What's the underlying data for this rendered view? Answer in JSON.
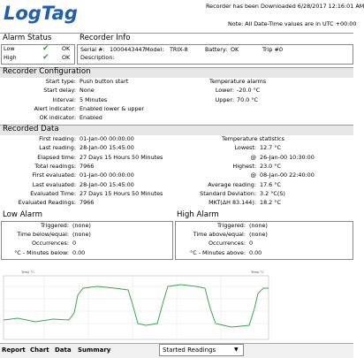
{
  "header": {
    "logo": "LogTag",
    "download_note": "Recorder has been Downloaded 6/28/2017 12:16:01 AM",
    "utc_note": "Note: All Date-Time values are in UTC +00:00"
  },
  "alarm_status": {
    "title": "Alarm Status",
    "rows": [
      {
        "label": "Low",
        "status": "OK"
      },
      {
        "label": "High",
        "status": "OK"
      }
    ]
  },
  "recorder_info": {
    "title": "Recorder Info",
    "fields": [
      [
        "Serial #:",
        "1000443447"
      ],
      [
        "Model:",
        "TRIX-8"
      ],
      [
        "Battery:",
        "OK"
      ],
      [
        "Trip #:",
        "0"
      ]
    ],
    "description_label": "Description:"
  },
  "configuration": {
    "title": "Recorder Configuration",
    "rows": [
      [
        "Start type:",
        "Push button start"
      ],
      [
        "Start delay:",
        "None"
      ],
      [
        "Interval:",
        "5 Minutes"
      ],
      [
        "Alert indicator:",
        "Enabled lower & upper"
      ],
      [
        "OK indicator:",
        "Enabled"
      ]
    ],
    "alarms_title": "Temperature alarms",
    "alarms": [
      [
        "Lower:",
        "-20.0 °C"
      ],
      [
        "Upper:",
        "70.0 °C"
      ]
    ]
  },
  "recorded_data": {
    "title": "Recorded Data",
    "rows": [
      [
        "First reading:",
        "01-Jan-00 00:00:00"
      ],
      [
        "Last reading:",
        "28-Jan-00 15:45:00"
      ],
      [
        "Elapsed time:",
        "27 Days 15 Hours 50 Minutes"
      ],
      [
        "Total readings:",
        "7966"
      ],
      [
        "First evaluated:",
        "01-Jan-00 00:00:00"
      ],
      [
        "Last evaluated:",
        "28-Jan-00 15:45:00"
      ],
      [
        "Evaluated Time:",
        "27 Days 15 Hours 50 Minutes"
      ],
      [
        "Evaluated Readings:",
        "7966"
      ]
    ],
    "stats_title": "Temperature statistics",
    "stats": [
      [
        "Lowest:",
        "12.7 °C"
      ],
      [
        "@",
        "26-Jan-00 10:30:00"
      ],
      [
        "Highest:",
        "23.0 °C"
      ],
      [
        "@",
        "08-Jan-00 22:40:00"
      ],
      [
        "Average reading:",
        "17.6 °C"
      ],
      [
        "Standard Deviation:",
        "3.2 °C(S)"
      ],
      [
        "MKT(ΔH 83.144):",
        "18.2 °C"
      ]
    ]
  },
  "low_alarm": {
    "title": "Low Alarm",
    "rows": [
      [
        "Triggered:",
        "(none)"
      ],
      [
        "Time below/equal:",
        "(none)"
      ],
      [
        "Occurrences:",
        "0"
      ],
      [
        "°C - Minutes below:",
        "0.00"
      ]
    ]
  },
  "high_alarm": {
    "title": "High Alarm",
    "rows": [
      [
        "Triggered:",
        "(none)"
      ],
      [
        "Time above/equal:",
        "(none)"
      ],
      [
        "Occurrences:",
        "0"
      ],
      [
        "°C - Minutes above:",
        "0.00"
      ]
    ]
  },
  "chart": {
    "y_label_left": "Temp °C",
    "y_label_right": "Temp °C"
  },
  "tabs": [
    "Report",
    "Chart",
    "Data",
    "Summary"
  ],
  "view_select": "Started Readings"
}
